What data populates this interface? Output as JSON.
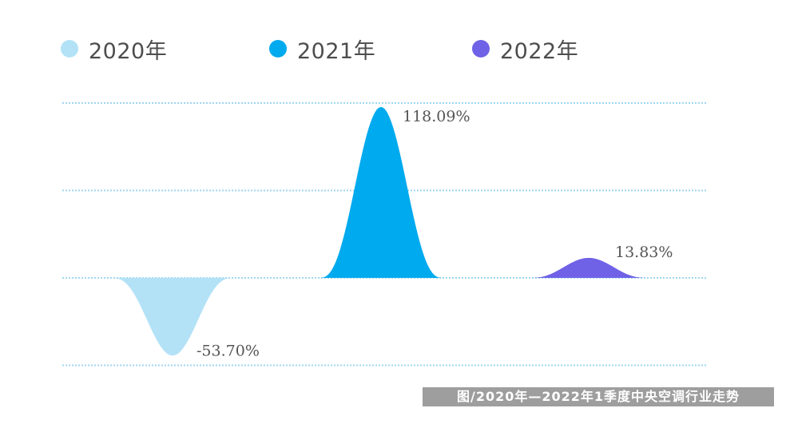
{
  "chart_data": {
    "type": "area",
    "title": "",
    "xlabel": "",
    "ylabel": "",
    "series": [
      {
        "name": "2020年",
        "value": -53.7,
        "label": "-53.70%",
        "color": "#b3e2f7"
      },
      {
        "name": "2021年",
        "value": 118.09,
        "label": "118.09%",
        "color": "#00aaee"
      },
      {
        "name": "2022年",
        "value": 13.83,
        "label": "13.83%",
        "color": "#6f62e6"
      }
    ],
    "grid": true,
    "gridline_color": "#9fd6f0",
    "legend_position": "top"
  },
  "caption": "图/2020年—2022年1季度中央空调行业走势"
}
